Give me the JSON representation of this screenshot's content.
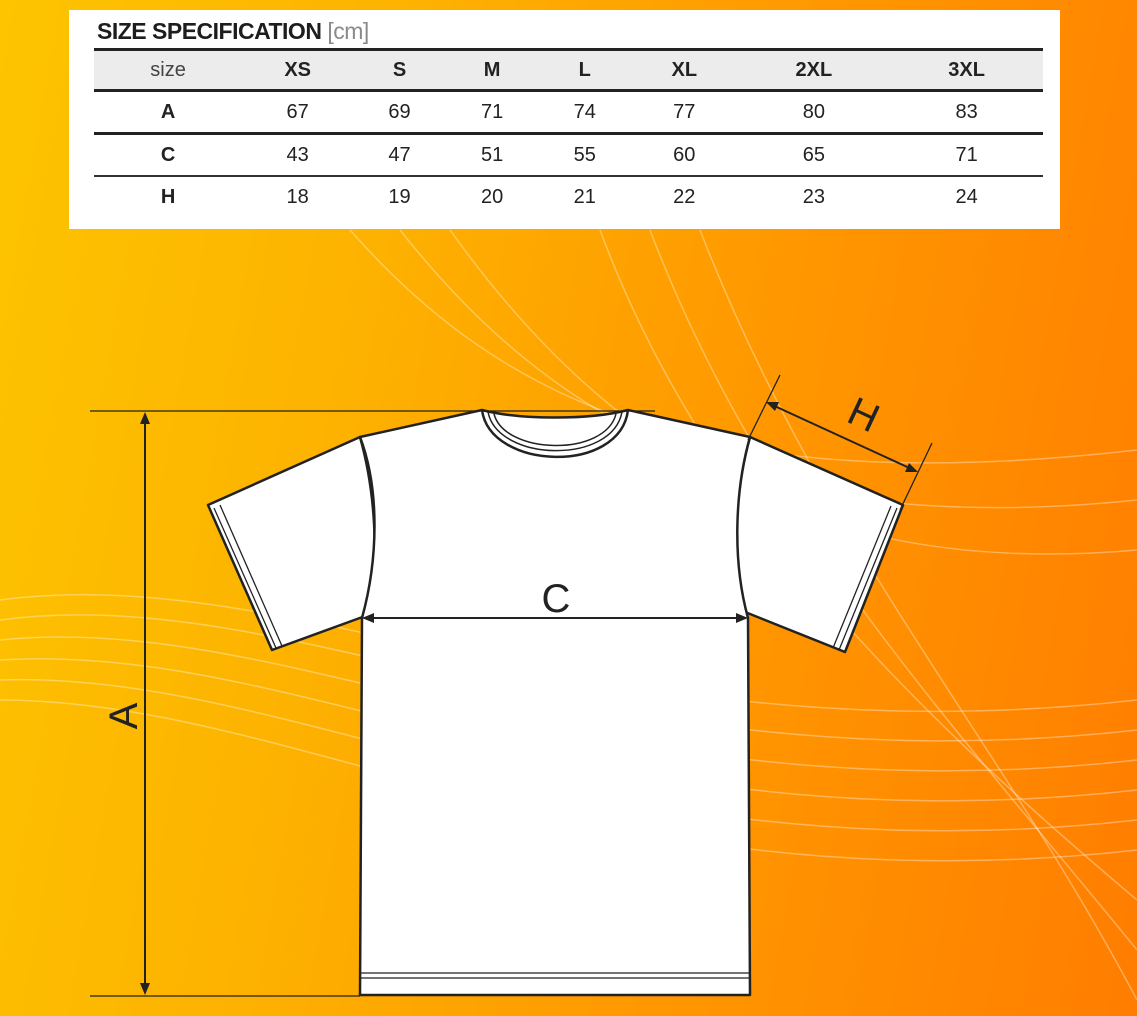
{
  "title": "SIZE SPECIFICATION",
  "unit": "[cm]",
  "table": {
    "header": [
      "size",
      "XS",
      "S",
      "M",
      "L",
      "XL",
      "2XL",
      "3XL"
    ],
    "rows": [
      [
        "A",
        "67",
        "69",
        "71",
        "74",
        "77",
        "80",
        "83"
      ],
      [
        "C",
        "43",
        "47",
        "51",
        "55",
        "60",
        "65",
        "71"
      ],
      [
        "H",
        "18",
        "19",
        "20",
        "21",
        "22",
        "23",
        "24"
      ]
    ]
  },
  "diagram": {
    "label_a": "A",
    "label_c": "C",
    "label_h": "H"
  },
  "colors": {
    "background_left": "#fdc400",
    "background_right": "#ff7d00"
  }
}
